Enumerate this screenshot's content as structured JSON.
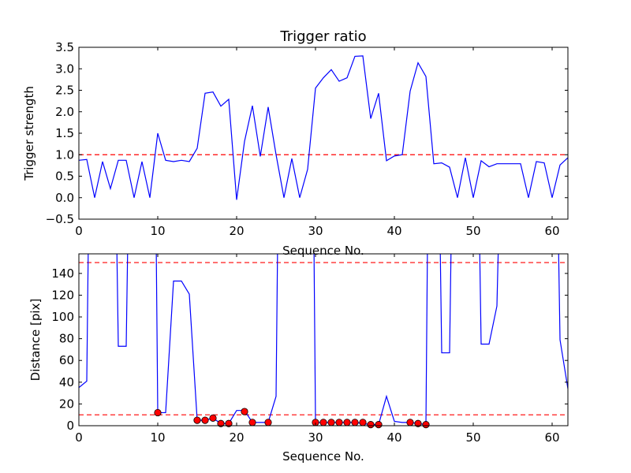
{
  "chart_data": [
    {
      "type": "line",
      "title": "Trigger ratio",
      "xlabel": "Sequence No.",
      "ylabel": "Trigger strength",
      "xlim": [
        0,
        62
      ],
      "ylim": [
        -0.5,
        3.5
      ],
      "xticks": [
        "0",
        "10",
        "20",
        "30",
        "40",
        "50",
        "60"
      ],
      "yticks": [
        "−0.5",
        "0.0",
        "0.5",
        "1.0",
        "1.5",
        "2.0",
        "2.5",
        "3.0",
        "3.5"
      ],
      "grid": false,
      "colors": {
        "line": "#0000ff",
        "threshold": "#ff0000"
      },
      "threshold_lines": [
        1.0
      ],
      "series": [
        {
          "x": [
            0,
            1,
            2,
            3,
            4,
            5,
            6,
            7,
            8,
            9,
            10,
            11,
            12,
            13,
            14,
            15,
            16,
            17,
            18,
            19,
            20,
            21,
            22,
            23,
            24,
            25,
            26,
            27,
            28,
            29,
            30,
            31,
            32,
            33,
            34,
            35,
            36,
            37,
            38,
            39,
            40,
            41,
            42,
            43,
            44,
            45,
            46,
            47,
            48,
            49,
            50,
            51,
            52,
            53,
            54,
            55,
            56,
            57,
            58,
            59,
            60,
            61,
            62
          ],
          "y": [
            0.87,
            0.89,
            0.0,
            0.84,
            0.21,
            0.87,
            0.87,
            0.0,
            0.84,
            0.0,
            1.5,
            0.87,
            0.84,
            0.87,
            0.84,
            1.15,
            2.43,
            2.46,
            2.13,
            2.29,
            -0.05,
            1.31,
            2.14,
            0.96,
            2.11,
            1.0,
            0.0,
            0.91,
            0.0,
            0.66,
            2.55,
            2.79,
            2.98,
            2.71,
            2.79,
            3.29,
            3.3,
            1.84,
            2.43,
            0.86,
            0.97,
            1.0,
            2.48,
            3.14,
            2.82,
            0.79,
            0.81,
            0.71,
            0.0,
            0.93,
            0.0,
            0.86,
            0.72,
            0.79,
            0.79,
            0.79,
            0.79,
            0.0,
            0.84,
            0.81,
            0.0,
            0.76,
            0.93
          ]
        }
      ]
    },
    {
      "type": "line",
      "title": "",
      "xlabel": "Sequence No.",
      "ylabel": "Distance [pix]",
      "xlim": [
        0,
        62
      ],
      "ylim": [
        0,
        158
      ],
      "xticks": [
        "0",
        "10",
        "20",
        "30",
        "40",
        "50",
        "60"
      ],
      "yticks": [
        "0",
        "20",
        "40",
        "60",
        "80",
        "100",
        "120",
        "140"
      ],
      "grid": false,
      "colors": {
        "line": "#0000ff",
        "threshold": "#ff0000",
        "markers": "#ff0000"
      },
      "threshold_lines": [
        10,
        150
      ],
      "series": [
        {
          "x": [
            0,
            1,
            1.2,
            4.8,
            5,
            6,
            6.2,
            9.8,
            10,
            11,
            12,
            13,
            14,
            15,
            16,
            17,
            18,
            19,
            20,
            21,
            22,
            23,
            24,
            25,
            25.2,
            29.8,
            30,
            31,
            32,
            33,
            34,
            35,
            36,
            37,
            38,
            39,
            40,
            41,
            42,
            43,
            44,
            44.2,
            45.8,
            46,
            47,
            47.2,
            50.8,
            51,
            52,
            53,
            53.2,
            60.8,
            61,
            62
          ],
          "y": [
            35,
            41,
            170,
            170,
            73,
            73,
            170,
            170,
            12,
            12,
            133,
            133,
            121,
            5,
            5,
            7,
            2,
            2,
            14,
            14,
            3,
            3,
            3,
            27,
            170,
            170,
            3,
            3,
            3,
            3,
            3,
            3,
            2,
            1,
            1,
            27,
            4,
            3,
            3,
            2,
            1,
            170,
            170,
            67,
            67,
            170,
            170,
            75,
            75,
            110,
            170,
            170,
            79,
            34
          ]
        }
      ],
      "markers": {
        "x": [
          10,
          15,
          16,
          17,
          18,
          19,
          21,
          22,
          24,
          30,
          31,
          32,
          33,
          34,
          35,
          36,
          37,
          38,
          42,
          43,
          44
        ],
        "y": [
          12,
          5,
          5,
          7,
          2,
          2,
          13,
          3,
          3,
          3,
          3,
          3,
          3,
          3,
          3,
          3,
          1,
          1,
          3,
          2,
          1
        ]
      }
    }
  ]
}
